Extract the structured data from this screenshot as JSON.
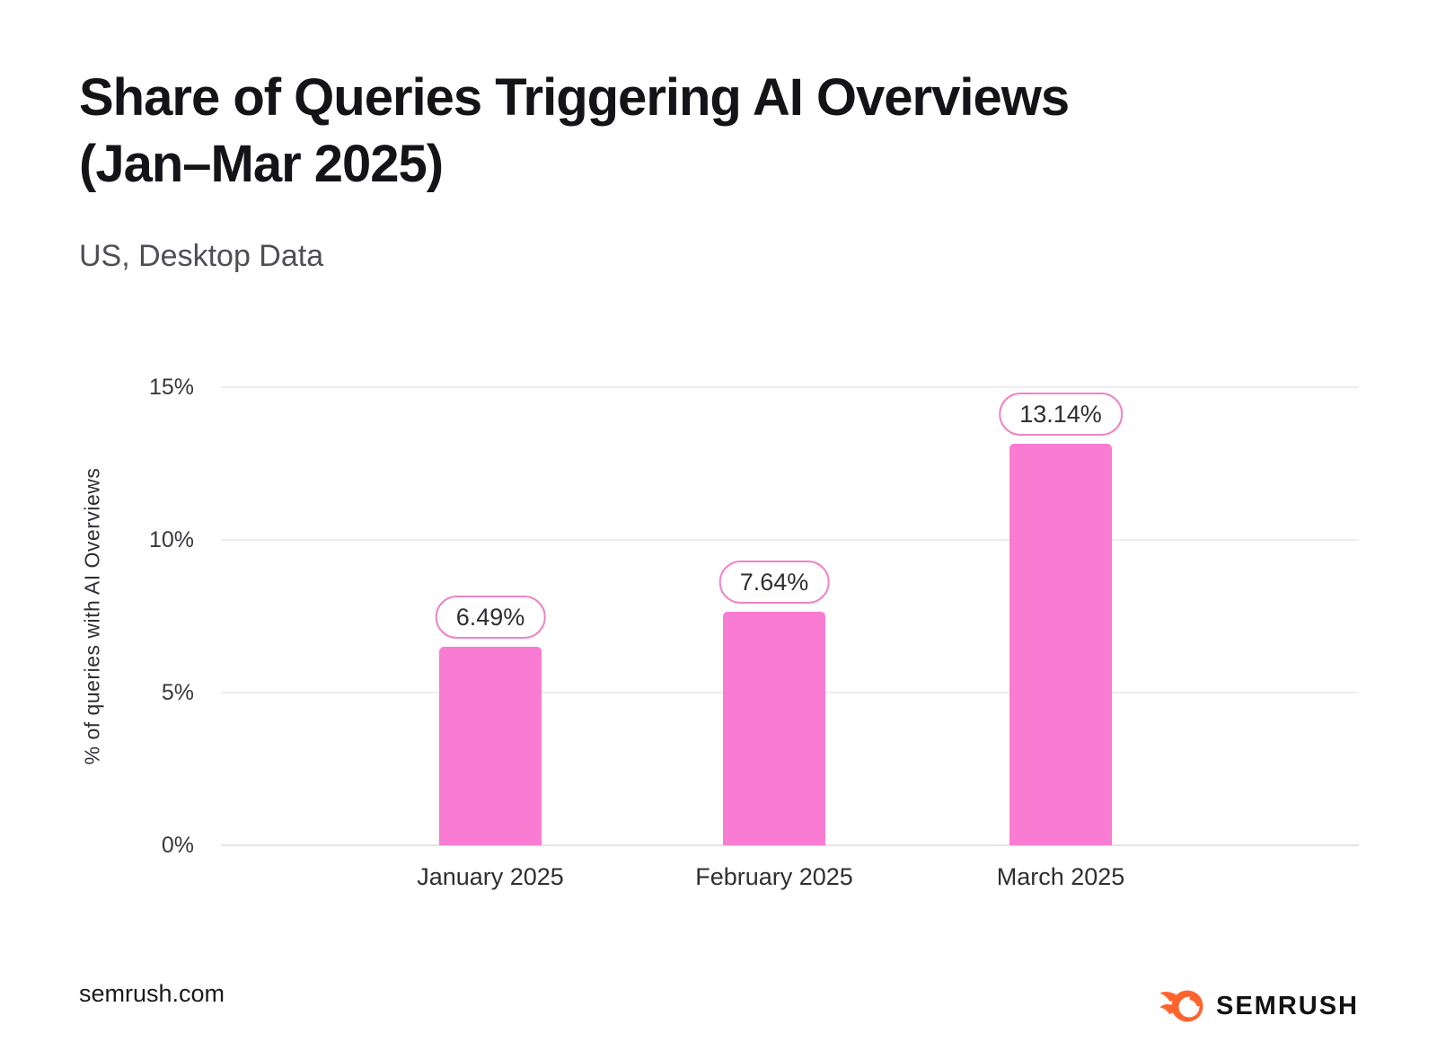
{
  "header": {
    "title_line1": "Share of Queries Triggering AI Overviews",
    "title_line2": "(Jan–Mar 2025)",
    "subtitle": "US, Desktop Data"
  },
  "chart_data": {
    "type": "bar",
    "title": "Share of Queries Triggering AI Overviews (Jan–Mar 2025)",
    "subtitle": "US, Desktop Data",
    "categories": [
      "January 2025",
      "February 2025",
      "March 2025"
    ],
    "values": [
      6.49,
      7.64,
      13.14
    ],
    "value_labels": [
      "6.49%",
      "7.64%",
      "13.14%"
    ],
    "xlabel": "",
    "ylabel": "% of queries with AI Overviews",
    "ylim": [
      0,
      15
    ],
    "yticks": [
      "0%",
      "5%",
      "10%",
      "15%"
    ],
    "grid": true,
    "legend": false,
    "bar_color": "#FA7CD2"
  },
  "colors": {
    "bar": "#FA7CD2",
    "pill_border": "#F083C8",
    "grid": "#EDEDF2",
    "brand_orange": "#FF642D",
    "brand_black": "#121212"
  },
  "footer": {
    "source": "semrush.com",
    "brand": "SEMRUSH",
    "brand_icon": "semrush-fireball-icon"
  }
}
